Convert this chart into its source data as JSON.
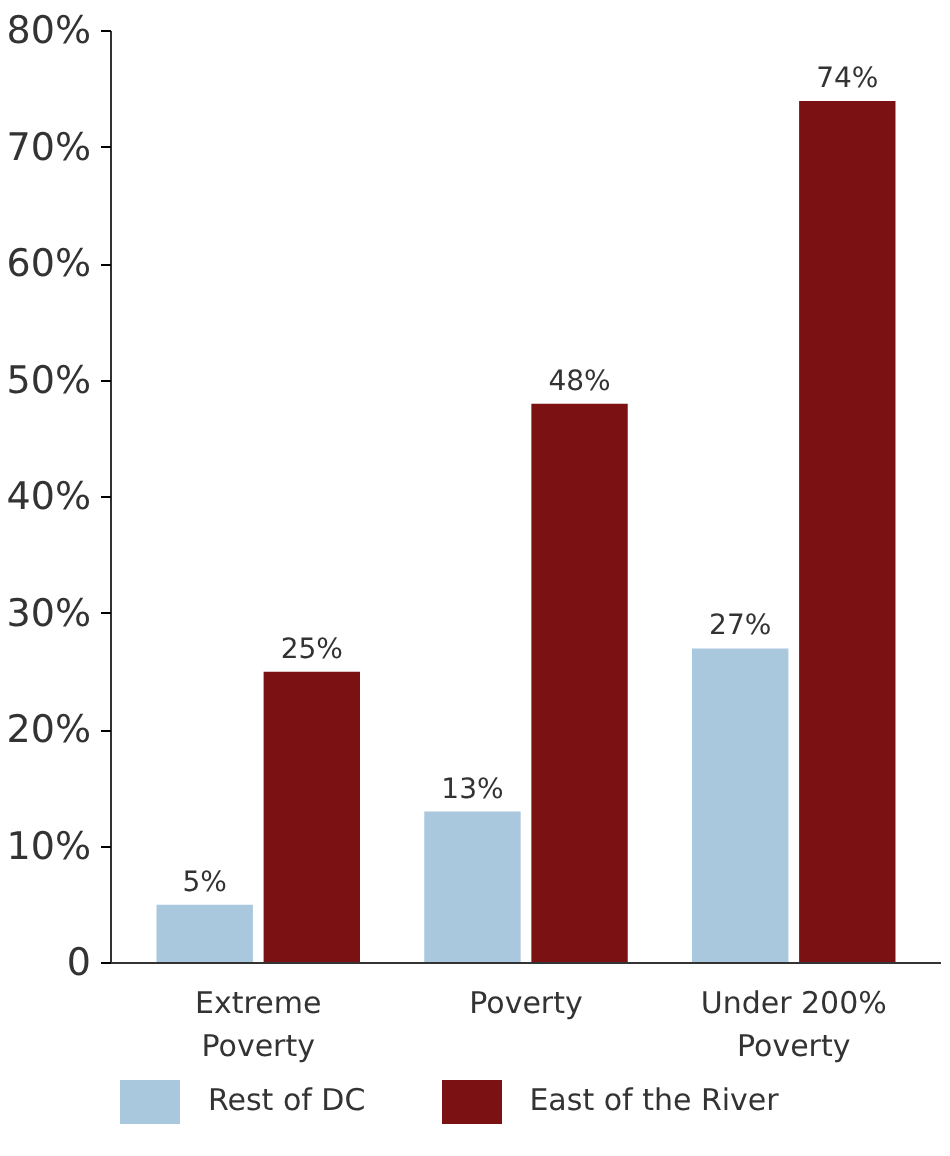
{
  "chart_data": {
    "type": "bar",
    "categories": [
      "Extreme Poverty",
      "Poverty",
      "Under 200% Poverty"
    ],
    "series": [
      {
        "name": "Rest of DC",
        "color": "#a9c8de",
        "values": [
          5,
          13,
          27
        ],
        "value_labels": [
          "5%",
          "13%",
          "27%"
        ]
      },
      {
        "name": "East of the River",
        "color": "#7b1113",
        "values": [
          25,
          48,
          74
        ],
        "value_labels": [
          "25%",
          "48%",
          "74%"
        ]
      }
    ],
    "ylim": [
      0,
      80
    ],
    "yticks": [
      0,
      {
        "value": 10,
        "label": "10%"
      },
      {
        "value": 20,
        "label": "20%"
      },
      {
        "value": 30,
        "label": "30%"
      },
      {
        "value": 40,
        "label": "40%"
      },
      {
        "value": 50,
        "label": "50%"
      },
      {
        "value": 60,
        "label": "60%"
      },
      {
        "value": 70,
        "label": "70%"
      },
      {
        "value": 80,
        "label": "80%"
      }
    ],
    "grid": false,
    "legend": "bottom"
  }
}
